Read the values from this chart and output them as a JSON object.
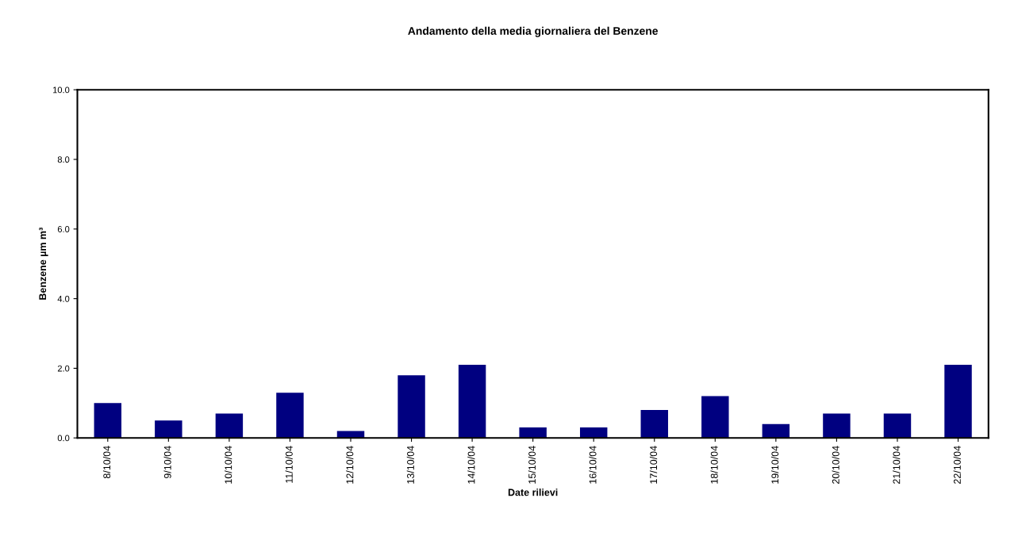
{
  "chart_data": {
    "type": "bar",
    "title": "Andamento della media giornaliera del Benzene",
    "xlabel": "Date rilievi",
    "ylabel": "Benzene µm m³",
    "categories": [
      "8/10/04",
      "9/10/04",
      "10/10/04",
      "11/10/04",
      "12/10/04",
      "13/10/04",
      "14/10/04",
      "15/10/04",
      "16/10/04",
      "17/10/04",
      "18/10/04",
      "19/10/04",
      "20/10/04",
      "21/10/04",
      "22/10/04"
    ],
    "values": [
      1.0,
      0.5,
      0.7,
      1.3,
      0.2,
      1.8,
      2.1,
      0.3,
      0.3,
      0.8,
      1.2,
      0.4,
      0.7,
      0.7,
      2.1
    ],
    "color": "#000080",
    "ylim": [
      0,
      10
    ],
    "yticks": [
      {
        "value": 0,
        "label": "0.0"
      },
      {
        "value": 2,
        "label": "2.0"
      },
      {
        "value": 4,
        "label": "4.0"
      },
      {
        "value": 6,
        "label": "6.0"
      },
      {
        "value": 8,
        "label": "8.0"
      },
      {
        "value": 10,
        "label": "10.0"
      }
    ],
    "grid": false,
    "legend": false
  }
}
